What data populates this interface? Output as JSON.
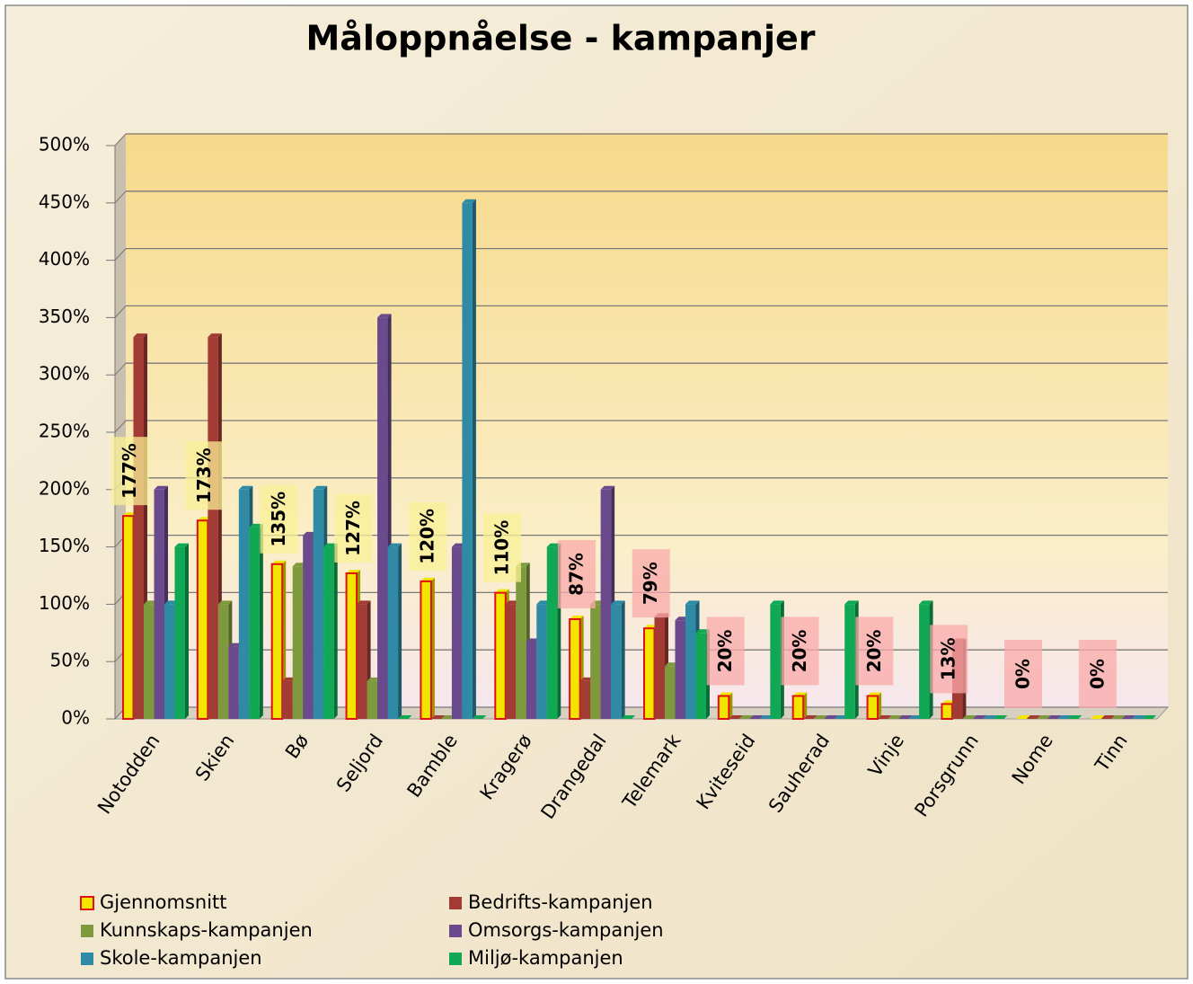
{
  "chart_data": {
    "type": "bar",
    "title": "Måloppnåelse - kampanjer",
    "categories": [
      "Notodden",
      "Skien",
      "Bø",
      "Seljord",
      "Bamble",
      "Kragerø",
      "Drangedal",
      "Telemark",
      "Kviteseid",
      "Sauherad",
      "Vinje",
      "Porsgrunn",
      "Nome",
      "Tinn"
    ],
    "series": [
      {
        "name": "Gjennomsnitt",
        "color": "#f2e600",
        "values": [
          177,
          173,
          135,
          127,
          120,
          110,
          87,
          79,
          20,
          20,
          20,
          13,
          0,
          0
        ],
        "value_labels": [
          "177%",
          "173%",
          "135%",
          "127%",
          "120%",
          "110%",
          "87%",
          "79%",
          "20%",
          "20%",
          "20%",
          "13%",
          "0%",
          "0%"
        ]
      },
      {
        "name": "Bedrifts-kampanjen",
        "color": "#a33b35",
        "values": [
          333,
          333,
          33,
          100,
          0,
          100,
          33,
          89,
          0,
          0,
          0,
          67,
          0,
          0
        ]
      },
      {
        "name": "Kunnskaps-kampanjen",
        "color": "#7f9a3c",
        "values": [
          100,
          100,
          133,
          33,
          0,
          133,
          100,
          46,
          0,
          0,
          0,
          0,
          0,
          0
        ]
      },
      {
        "name": "Omsorgs-kampanjen",
        "color": "#6a4a8c",
        "values": [
          200,
          63,
          160,
          350,
          150,
          67,
          200,
          86,
          0,
          0,
          0,
          0,
          0,
          0
        ]
      },
      {
        "name": "Skole-kampanjen",
        "color": "#2f8aa5",
        "values": [
          100,
          200,
          200,
          150,
          450,
          100,
          100,
          100,
          0,
          0,
          0,
          0,
          0,
          0
        ]
      },
      {
        "name": "Miljø-kampanjen",
        "color": "#10a855",
        "values": [
          150,
          167,
          150,
          0,
          0,
          150,
          0,
          75,
          100,
          100,
          100,
          0,
          0,
          0
        ]
      }
    ],
    "ylim": [
      0,
      500
    ],
    "yticks": [
      {
        "value": 0,
        "label": "0%"
      },
      {
        "value": 50,
        "label": "50%"
      },
      {
        "value": 100,
        "label": "100%"
      },
      {
        "value": 150,
        "label": "150%"
      },
      {
        "value": 200,
        "label": "200%"
      },
      {
        "value": 250,
        "label": "250%"
      },
      {
        "value": 300,
        "label": "300%"
      },
      {
        "value": 350,
        "label": "350%"
      },
      {
        "value": 400,
        "label": "400%"
      },
      {
        "value": 450,
        "label": "450%"
      },
      {
        "value": 500,
        "label": "500%"
      }
    ],
    "grid": true,
    "legend": "bottom"
  }
}
